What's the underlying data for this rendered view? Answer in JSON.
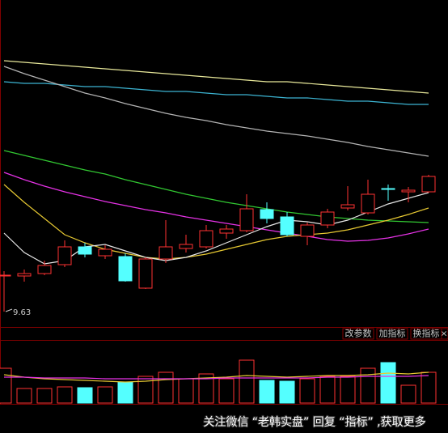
{
  "chart_data": {
    "type": "candlestick",
    "up_color": "#ff3232",
    "down_color": "#54ffff",
    "ylim": [
      9.53,
      11.555
    ],
    "open": [
      9.85,
      9.85,
      9.865,
      9.92,
      10.03,
      9.975,
      9.97,
      9.775,
      9.955,
      10.02,
      10.03,
      10.115,
      10.13,
      10.26,
      10.215,
      10.095,
      10.165,
      10.27,
      10.24,
      10.39,
      10.37,
      10.37
    ],
    "high": [
      9.88,
      9.89,
      9.945,
      10.07,
      10.055,
      10.04,
      9.99,
      9.965,
      10.195,
      10.105,
      10.165,
      10.165,
      10.355,
      10.305,
      10.245,
      10.18,
      10.265,
      10.405,
      10.445,
      10.415,
      10.4,
      10.475
    ],
    "low": [
      9.63,
      9.815,
      9.855,
      9.905,
      9.965,
      9.955,
      9.815,
      9.77,
      9.93,
      9.995,
      10.02,
      10.08,
      10.12,
      10.175,
      10.095,
      10.04,
      10.145,
      10.255,
      10.23,
      10.315,
      10.305,
      10.365
    ],
    "close": [
      9.855,
      9.865,
      9.915,
      10.03,
      9.985,
      10.015,
      9.82,
      9.955,
      10.03,
      10.045,
      10.13,
      10.14,
      10.265,
      10.205,
      10.105,
      10.165,
      10.245,
      10.29,
      10.355,
      10.39,
      10.38,
      10.465
    ],
    "lines": [
      {
        "color": "#e8e89a",
        "values": [
          11.18,
          11.17,
          11.16,
          11.15,
          11.14,
          11.13,
          11.12,
          11.11,
          11.1,
          11.09,
          11.08,
          11.07,
          11.06,
          11.05,
          11.05,
          11.04,
          11.03,
          11.02,
          11.01,
          11.0,
          10.99,
          10.98
        ]
      },
      {
        "color": "#3cb4d2",
        "values": [
          11.05,
          11.04,
          11.04,
          11.03,
          11.02,
          11.02,
          11.01,
          11.0,
          10.99,
          10.99,
          10.98,
          10.97,
          10.97,
          10.96,
          10.95,
          10.95,
          10.94,
          10.93,
          10.93,
          10.92,
          10.91,
          10.91
        ]
      },
      {
        "color": "#b4b4b4",
        "values": [
          11.145,
          11.1,
          11.06,
          11.02,
          10.98,
          10.95,
          10.915,
          10.885,
          10.855,
          10.83,
          10.81,
          10.785,
          10.765,
          10.745,
          10.73,
          10.715,
          10.695,
          10.675,
          10.65,
          10.63,
          10.61,
          10.59
        ]
      },
      {
        "color": "#32c832",
        "values": [
          10.625,
          10.595,
          10.565,
          10.535,
          10.505,
          10.48,
          10.445,
          10.415,
          10.385,
          10.355,
          10.33,
          10.305,
          10.285,
          10.265,
          10.245,
          10.23,
          10.215,
          10.205,
          10.195,
          10.19,
          10.185,
          10.18
        ]
      },
      {
        "color": "#e632e6",
        "values": [
          10.49,
          10.445,
          10.405,
          10.37,
          10.34,
          10.31,
          10.285,
          10.26,
          10.24,
          10.215,
          10.195,
          10.175,
          10.155,
          10.135,
          10.115,
          10.095,
          10.075,
          10.065,
          10.07,
          10.085,
          10.11,
          10.14
        ]
      },
      {
        "color": "#e6c832",
        "values": [
          10.415,
          10.305,
          10.205,
          10.105,
          10.055,
          10.015,
          9.99,
          9.965,
          9.955,
          9.965,
          9.985,
          10.015,
          10.045,
          10.075,
          10.095,
          10.105,
          10.115,
          10.135,
          10.165,
          10.195,
          10.23,
          10.27
        ]
      },
      {
        "color": "#e6e6e6",
        "values": [
          10.115,
          9.995,
          9.925,
          9.945,
          10.03,
          10.045,
          10.005,
          9.965,
          9.945,
          9.965,
          10.005,
          10.055,
          10.105,
          10.155,
          10.195,
          10.185,
          10.165,
          10.195,
          10.245,
          10.295,
          10.33,
          10.365
        ]
      }
    ],
    "annotation": "9.63",
    "volume": {
      "ylim": [
        0,
        80
      ],
      "values": [
        43,
        18,
        18,
        20,
        19,
        20,
        26,
        33,
        38,
        30,
        36,
        30,
        53,
        28,
        27,
        30,
        33,
        33,
        43,
        50,
        22,
        38
      ],
      "lines": [
        {
          "color": "#e6c832",
          "values": [
            35,
            32,
            30,
            29,
            28,
            27,
            26,
            27,
            29,
            30,
            31,
            32,
            34,
            33,
            32,
            33,
            34,
            34,
            35,
            37,
            36,
            38
          ]
        },
        {
          "color": "#e632e6",
          "values": [
            32,
            32,
            31,
            31,
            31,
            30,
            30,
            30,
            30,
            30,
            30,
            31,
            31,
            31,
            31,
            31,
            32,
            32,
            33,
            33,
            33,
            34
          ]
        }
      ]
    }
  },
  "buttons": [
    "改参数",
    "加指标",
    "换指标"
  ],
  "watermark": "关注微信 “老韩实盘” 回复 “指标” ,获取更多"
}
